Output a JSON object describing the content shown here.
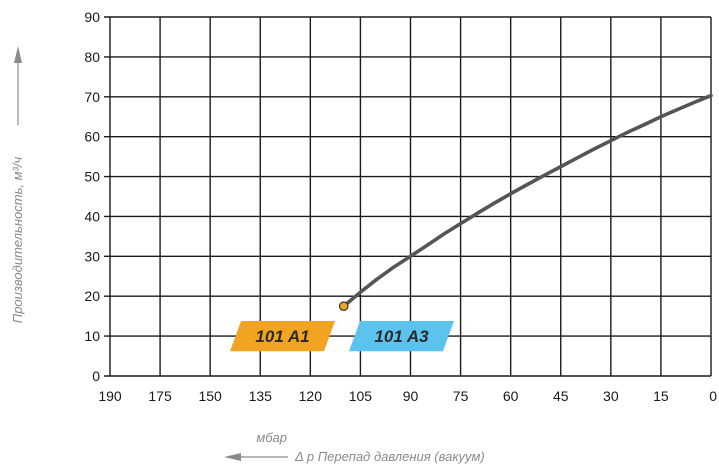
{
  "chart_data": {
    "type": "line",
    "title": "",
    "xlabel": "Δ p Перепад давления (вакуум)",
    "xunit": "мбар",
    "ylabel": "Производительность, м³/ч",
    "xlim": [
      190,
      0
    ],
    "ylim": [
      0,
      90
    ],
    "x_reversed": true,
    "grid": true,
    "x_ticks": [
      190,
      175,
      150,
      135,
      120,
      105,
      90,
      75,
      60,
      45,
      30,
      15,
      0
    ],
    "x_tick_labels": [
      "190",
      "175",
      "150",
      "135",
      "120",
      "105",
      "90",
      "75",
      "60",
      "45",
      "30",
      "15",
      "0"
    ],
    "y_ticks": [
      0,
      10,
      20,
      30,
      40,
      50,
      60,
      70,
      80,
      90
    ],
    "y_tick_labels": [
      "0",
      "10",
      "20",
      "30",
      "40",
      "50",
      "60",
      "70",
      "80",
      "90"
    ],
    "series": [
      {
        "color": "#555555",
        "x": [
          110,
          105,
          100,
          95,
          90,
          85,
          80,
          75,
          70,
          65,
          60,
          55,
          50,
          45,
          40,
          35,
          30,
          25,
          20,
          15,
          10,
          5,
          0
        ],
        "y": [
          17.5,
          21,
          24.3,
          27.3,
          30,
          32.8,
          35.6,
          38.2,
          40.8,
          43.3,
          45.7,
          48,
          50.3,
          52.5,
          54.7,
          56.9,
          59,
          61.1,
          63,
          65,
          66.8,
          68.6,
          70.3
        ]
      }
    ],
    "start_marker": {
      "x": 110,
      "y": 17.5,
      "fill": "#f0a422",
      "stroke": "#333333"
    },
    "badges": [
      {
        "text": "101 A1",
        "color": "#f0a422"
      },
      {
        "text": "101 A3",
        "color": "#5cc3ee"
      }
    ]
  }
}
